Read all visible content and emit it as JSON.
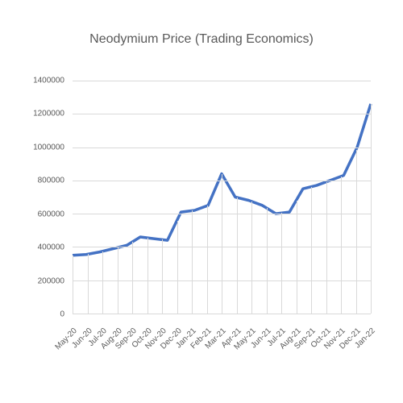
{
  "chart": {
    "type": "line",
    "title": "Neodymium Price (Trading Economics)",
    "title_fontsize": 16,
    "title_color": "#595959",
    "ylim": [
      0,
      1400000
    ],
    "ytick_step": 200000,
    "yticks": [
      0,
      200000,
      400000,
      600000,
      800000,
      1000000,
      1200000,
      1400000
    ],
    "categories": [
      "May-20",
      "Jun-20",
      "Jul-20",
      "Aug-20",
      "Sep-20",
      "Oct-20",
      "Nov-20",
      "Dec-20",
      "Jan-21",
      "Feb-21",
      "Mar-21",
      "Apr-21",
      "May-21",
      "Jun-21",
      "Jul-21",
      "Aug-21",
      "Sep-21",
      "Oct-21",
      "Nov-21",
      "Dec-21",
      "Jan-22"
    ],
    "values": [
      350000,
      355000,
      370000,
      390000,
      410000,
      460000,
      450000,
      440000,
      610000,
      620000,
      650000,
      840000,
      700000,
      680000,
      650000,
      600000,
      610000,
      750000,
      770000,
      800000,
      830000,
      1000000,
      1260000
    ],
    "x_positions_include_extra": true,
    "line_color": "#4472c4",
    "line_width": 3.5,
    "grid_color": "#d9d9d9",
    "axis_label_color": "#595959",
    "axis_label_fontsize": 10,
    "background_color": "#ffffff",
    "x_label_rotation": -45,
    "drop_lines": true
  }
}
